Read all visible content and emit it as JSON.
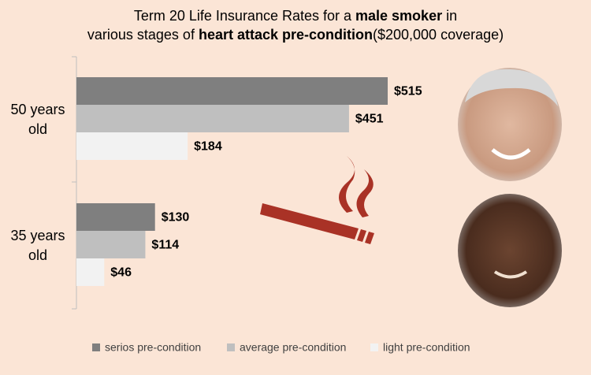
{
  "chart_data": {
    "type": "hbar",
    "title": [
      {
        "text": "Term 20 Life Insurance Rates for a ",
        "bold": false
      },
      {
        "text": "male  smoker",
        "bold": true
      },
      {
        "text": " in",
        "bold": false
      },
      {
        "text": "various stages of ",
        "bold": false,
        "newline": true
      },
      {
        "text": "heart attack pre-condition",
        "bold": true
      },
      {
        "text": "($200,000 coverage)",
        "bold": false
      }
    ],
    "categories": [
      "50 years old",
      "35 years old"
    ],
    "series": [
      {
        "name": "serios pre-condition",
        "color": "#7f7f7f",
        "values": [
          515,
          130
        ],
        "value_labels": [
          "$515",
          "$130"
        ]
      },
      {
        "name": "average pre-condition",
        "color": "#bfbfbf",
        "values": [
          451,
          114
        ],
        "value_labels": [
          "$451",
          "$114"
        ]
      },
      {
        "name": "light pre-condition",
        "color": "#f2f2f2",
        "values": [
          184,
          46
        ],
        "value_labels": [
          "$184",
          "$46"
        ]
      }
    ],
    "legend": "bottom"
  }
}
